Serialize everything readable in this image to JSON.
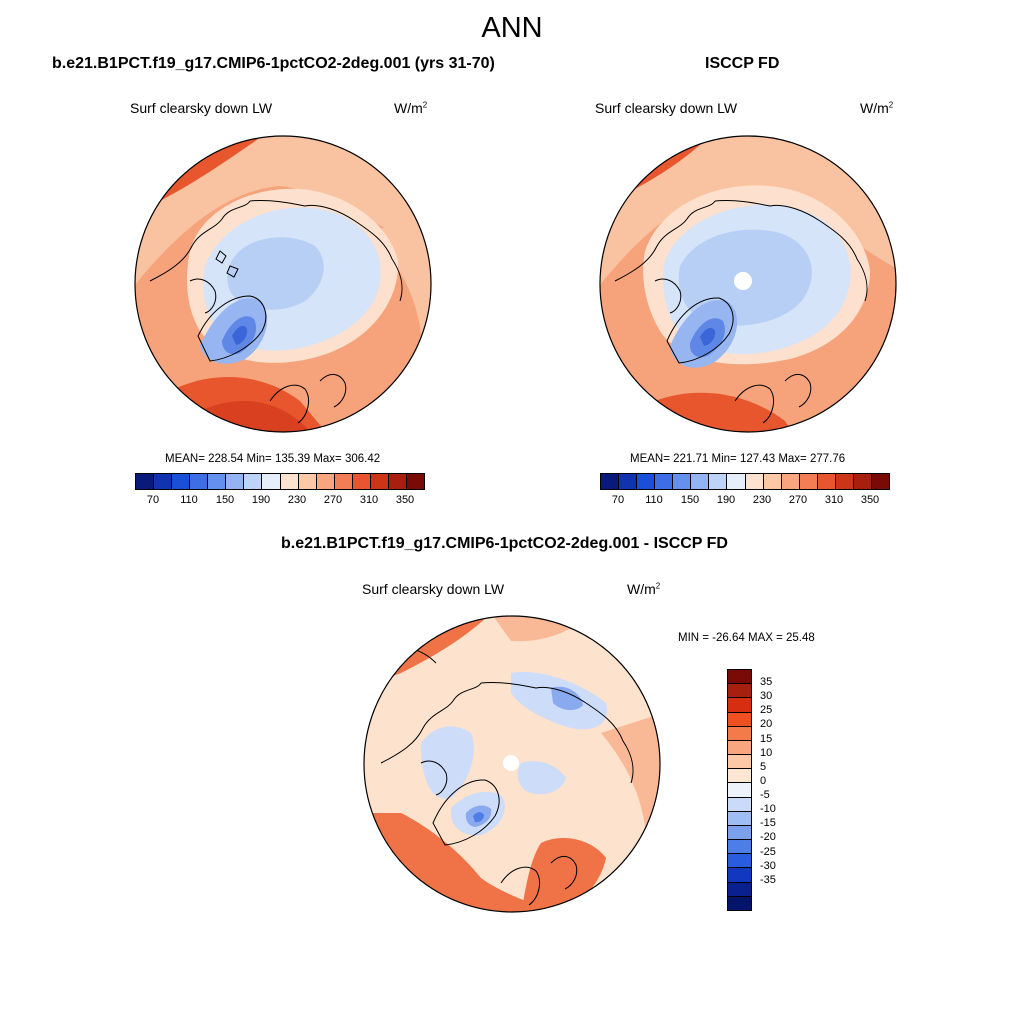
{
  "figure": {
    "title": "ANN"
  },
  "panels": [
    {
      "heading": "b.e21.B1PCT.f19_g17.CMIP6-1pctCO2-2deg.001 (yrs 31-70)",
      "variable": "Surf clearsky down LW",
      "unit_base": "W/m",
      "unit_exp": "2",
      "stats": "MEAN= 228.54  Min= 135.39  Max= 306.42"
    },
    {
      "heading": "ISCCP FD",
      "variable": "Surf clearsky down LW",
      "unit_base": "W/m",
      "unit_exp": "2",
      "stats": "MEAN= 221.71  Min= 127.43  Max= 277.76"
    },
    {
      "heading": "b.e21.B1PCT.f19_g17.CMIP6-1pctCO2-2deg.001 - ISCCP FD",
      "variable": "Surf clearsky down LW",
      "unit_base": "W/m",
      "unit_exp": "2",
      "stats": "MIN = -26.64 MAX =  25.48"
    }
  ],
  "colorbar_abs": {
    "colors": [
      "#0a1a7a",
      "#1033b0",
      "#1a4fd8",
      "#3d6ee8",
      "#6690ee",
      "#93b3f3",
      "#bdd3f8",
      "#e6eefb",
      "#fde3cf",
      "#fcc8a6",
      "#f9a57e",
      "#f37e56",
      "#e85530",
      "#cc3518",
      "#a81f10",
      "#7a0a05"
    ],
    "ticks": [
      "70",
      "110",
      "150",
      "190",
      "230",
      "270",
      "310",
      "350"
    ]
  },
  "colorbar_diff": {
    "colors": [
      "#7a0a05",
      "#a81f10",
      "#d62e10",
      "#f05020",
      "#f57a4a",
      "#f9a57e",
      "#fcc8a6",
      "#fde6d2",
      "#eef2fb",
      "#c9dbf8",
      "#9ebdf3",
      "#7aa0ee",
      "#4d7ee8",
      "#2a5ce0",
      "#1338c0",
      "#0a1f90",
      "#04146a"
    ],
    "ticks": [
      "35",
      "30",
      "25",
      "20",
      "15",
      "10",
      "5",
      "0",
      "-5",
      "-10",
      "-15",
      "-20",
      "-25",
      "-30",
      "-35"
    ]
  },
  "map_fills": {
    "ocean_warm": "#f6a27a",
    "warm_mid": "#f9c2a0",
    "warm_light": "#fde0cd",
    "hot": "#e8562e",
    "very_hot": "#d8401f",
    "cool_light": "#d5e4f9",
    "cool_mid": "#b8cff5",
    "cool": "#97b6f1",
    "cold": "#5f88e6",
    "colder": "#3b66d8",
    "diff_base": "#fde2cd",
    "diff_warm": "#f9b896",
    "diff_hot": "#ef7346",
    "diff_cool": "#cddcf8",
    "diff_cold": "#8aaaf0",
    "diff_colder": "#4f7de6"
  }
}
